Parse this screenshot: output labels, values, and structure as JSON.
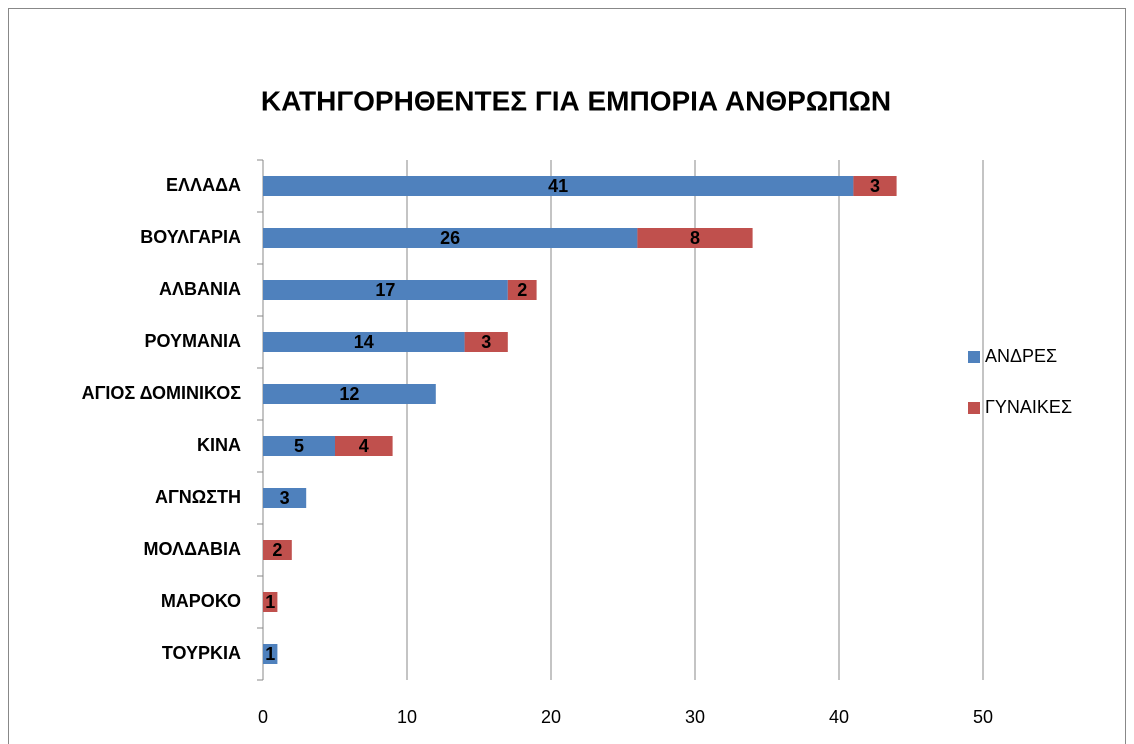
{
  "chart_data": {
    "type": "stacked_barh",
    "title": "ΚΑΤΗΓΟΡΗΘΕΝΤΕΣ ΓΙΑ ΕΜΠΟΡΙΑ ΑΝΘΡΩΠΩΝ",
    "categories": [
      "ΕΛΛΑΔΑ",
      "ΒΟΥΛΓΑΡΙΑ",
      "ΑΛΒΑΝΙΑ",
      "ΡΟΥΜΑΝΙΑ",
      "ΑΓΙΟΣ ΔΟΜΙΝΙΚΟΣ",
      "ΚΙΝΑ",
      "ΑΓΝΩΣΤΗ",
      "ΜΟΛΔΑΒΙΑ",
      "ΜΑΡΟΚΟ",
      "ΤΟΥΡΚΙΑ"
    ],
    "series": [
      {
        "name": "ΑΝΔΡΕΣ",
        "color": "#4f81bd",
        "values": [
          41,
          26,
          17,
          14,
          12,
          5,
          3,
          null,
          null,
          1
        ]
      },
      {
        "name": "ΓΥΝΑΙΚΕΣ",
        "color": "#c0504d",
        "values": [
          3,
          8,
          2,
          3,
          null,
          4,
          null,
          2,
          1,
          null
        ]
      }
    ],
    "xlim": [
      0,
      50
    ],
    "xticks": [
      0,
      10,
      20,
      30,
      40,
      50
    ],
    "grid": true,
    "legend": "right"
  }
}
